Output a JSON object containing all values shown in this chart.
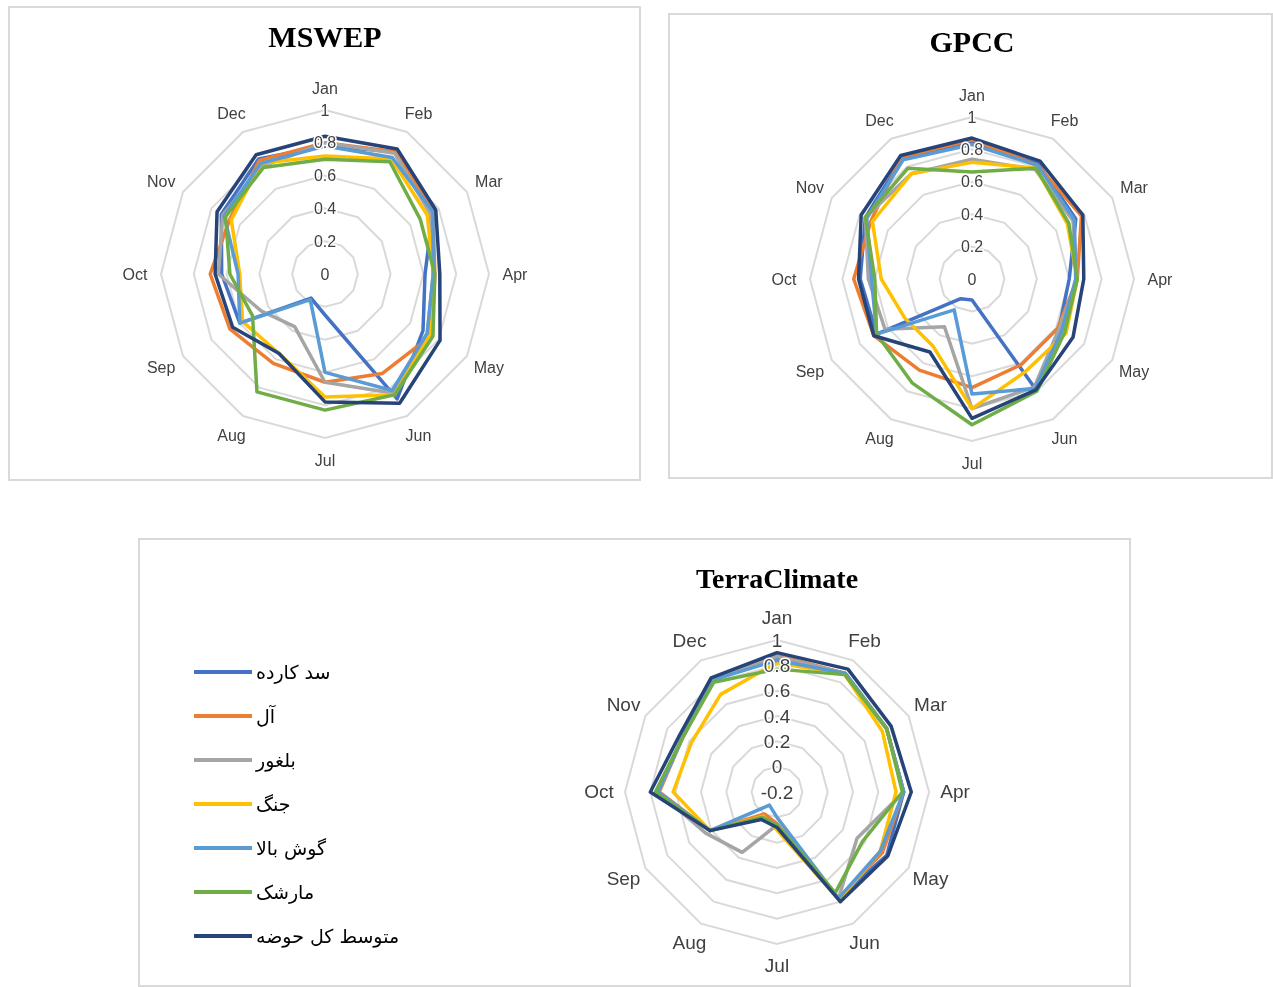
{
  "chart_data": [
    {
      "type": "radar",
      "title": "MSWEP",
      "categories": [
        "Jan",
        "Feb",
        "Mar",
        "Apr",
        "May",
        "Jun",
        "Jul",
        "Aug",
        "Sep",
        "Oct",
        "Nov",
        "Dec"
      ],
      "ylim": [
        0,
        1
      ],
      "yticks": [
        0,
        0.2,
        0.4,
        0.6,
        0.8,
        1
      ],
      "grid": true,
      "series": [
        {
          "color": "#4472c4",
          "values": [
            0.78,
            0.86,
            0.76,
            0.61,
            0.69,
            0.88,
            0.25,
            0.17,
            0.6,
            0.63,
            0.73,
            0.81
          ]
        },
        {
          "color": "#ed7d31",
          "values": [
            0.8,
            0.86,
            0.76,
            0.67,
            0.75,
            0.7,
            0.66,
            0.63,
            0.67,
            0.7,
            0.67,
            0.8
          ]
        },
        {
          "color": "#a5a5a5",
          "values": [
            0.8,
            0.85,
            0.74,
            0.66,
            0.72,
            0.84,
            0.66,
            0.37,
            0.45,
            0.65,
            0.72,
            0.76
          ]
        },
        {
          "color": "#ffc000",
          "values": [
            0.72,
            0.81,
            0.72,
            0.66,
            0.74,
            0.85,
            0.75,
            0.56,
            0.58,
            0.52,
            0.66,
            0.78
          ]
        },
        {
          "color": "#5b9bd5",
          "values": [
            0.78,
            0.82,
            0.76,
            0.66,
            0.72,
            0.82,
            0.6,
            0.18,
            0.6,
            0.53,
            0.71,
            0.78
          ]
        },
        {
          "color": "#70ad47",
          "values": [
            0.7,
            0.79,
            0.67,
            0.67,
            0.76,
            0.85,
            0.83,
            0.83,
            0.51,
            0.58,
            0.7,
            0.75
          ]
        },
        {
          "color": "#264478",
          "values": [
            0.84,
            0.88,
            0.78,
            0.7,
            0.81,
            0.91,
            0.78,
            0.56,
            0.65,
            0.67,
            0.76,
            0.84
          ]
        }
      ]
    },
    {
      "type": "radar",
      "title": "GPCC",
      "categories": [
        "Jan",
        "Feb",
        "Mar",
        "Apr",
        "May",
        "Jun",
        "Jul",
        "Aug",
        "Sep",
        "Oct",
        "Nov",
        "Dec"
      ],
      "ylim": [
        0,
        1
      ],
      "yticks": [
        0,
        0.2,
        0.4,
        0.6,
        0.8,
        1
      ],
      "grid": true,
      "series": [
        {
          "color": "#4472c4",
          "values": [
            0.85,
            0.82,
            0.74,
            0.6,
            0.62,
            0.78,
            0.13,
            0.14,
            0.68,
            0.69,
            0.76,
            0.86
          ]
        },
        {
          "color": "#ed7d31",
          "values": [
            0.86,
            0.81,
            0.78,
            0.65,
            0.61,
            0.61,
            0.67,
            0.65,
            0.7,
            0.73,
            0.72,
            0.87
          ]
        },
        {
          "color": "#a5a5a5",
          "values": [
            0.74,
            0.78,
            0.72,
            0.65,
            0.62,
            0.77,
            0.8,
            0.34,
            0.62,
            0.64,
            0.76,
            0.75
          ]
        },
        {
          "color": "#ffc000",
          "values": [
            0.72,
            0.79,
            0.68,
            0.65,
            0.67,
            0.66,
            0.8,
            0.48,
            0.48,
            0.56,
            0.71,
            0.75
          ]
        },
        {
          "color": "#5b9bd5",
          "values": [
            0.83,
            0.81,
            0.73,
            0.64,
            0.64,
            0.78,
            0.71,
            0.22,
            0.68,
            0.62,
            0.75,
            0.85
          ]
        },
        {
          "color": "#70ad47",
          "values": [
            0.66,
            0.79,
            0.69,
            0.65,
            0.66,
            0.8,
            0.9,
            0.74,
            0.68,
            0.6,
            0.76,
            0.79
          ]
        },
        {
          "color": "#264478",
          "values": [
            0.87,
            0.84,
            0.79,
            0.69,
            0.72,
            0.79,
            0.86,
            0.52,
            0.7,
            0.7,
            0.79,
            0.88
          ]
        }
      ]
    },
    {
      "type": "radar",
      "title": "TerraClimate",
      "categories": [
        "Jan",
        "Feb",
        "Mar",
        "Apr",
        "May",
        "Jun",
        "Jul",
        "Aug",
        "Sep",
        "Oct",
        "Nov",
        "Dec"
      ],
      "ylim": [
        -0.2,
        1
      ],
      "yticks": [
        -0.2,
        0,
        0.2,
        0.4,
        0.6,
        0.8,
        1
      ],
      "grid": true,
      "legend": "left",
      "series": [
        {
          "name": "سد کارده",
          "color": "#4472c4",
          "values": [
            0.86,
            0.88,
            0.8,
            0.8,
            0.8,
            0.77,
            0.06,
            0.02,
            0.41,
            0.75,
            0.66,
            0.82
          ]
        },
        {
          "name": "آل",
          "color": "#ed7d31",
          "values": [
            0.88,
            0.88,
            0.8,
            0.8,
            0.76,
            0.77,
            0.05,
            0.0,
            0.41,
            0.73,
            0.66,
            0.82
          ]
        },
        {
          "name": "بلغور",
          "color": "#a5a5a5",
          "values": [
            0.87,
            0.88,
            0.8,
            0.8,
            0.53,
            0.77,
            0.06,
            0.35,
            0.45,
            0.74,
            0.66,
            0.82
          ]
        },
        {
          "name": "جنگ",
          "color": "#ffc000",
          "values": [
            0.82,
            0.87,
            0.76,
            0.74,
            0.74,
            0.78,
            0.1,
            0.02,
            0.41,
            0.62,
            0.58,
            0.69
          ]
        },
        {
          "name": "گوش بالا",
          "color": "#5b9bd5",
          "values": [
            0.84,
            0.88,
            0.8,
            0.8,
            0.74,
            0.77,
            0.0,
            -0.08,
            0.41,
            0.74,
            0.66,
            0.82
          ]
        },
        {
          "name": "مارشک",
          "color": "#70ad47",
          "values": [
            0.77,
            0.87,
            0.8,
            0.79,
            0.58,
            0.72,
            0.06,
            0.03,
            0.41,
            0.76,
            0.66,
            0.8
          ]
        },
        {
          "name": "متوسط کل حوضه",
          "color": "#264478",
          "values": [
            0.9,
            0.92,
            0.84,
            0.86,
            0.81,
            0.8,
            0.08,
            0.05,
            0.41,
            0.8,
            0.69,
            0.84
          ]
        }
      ]
    }
  ]
}
